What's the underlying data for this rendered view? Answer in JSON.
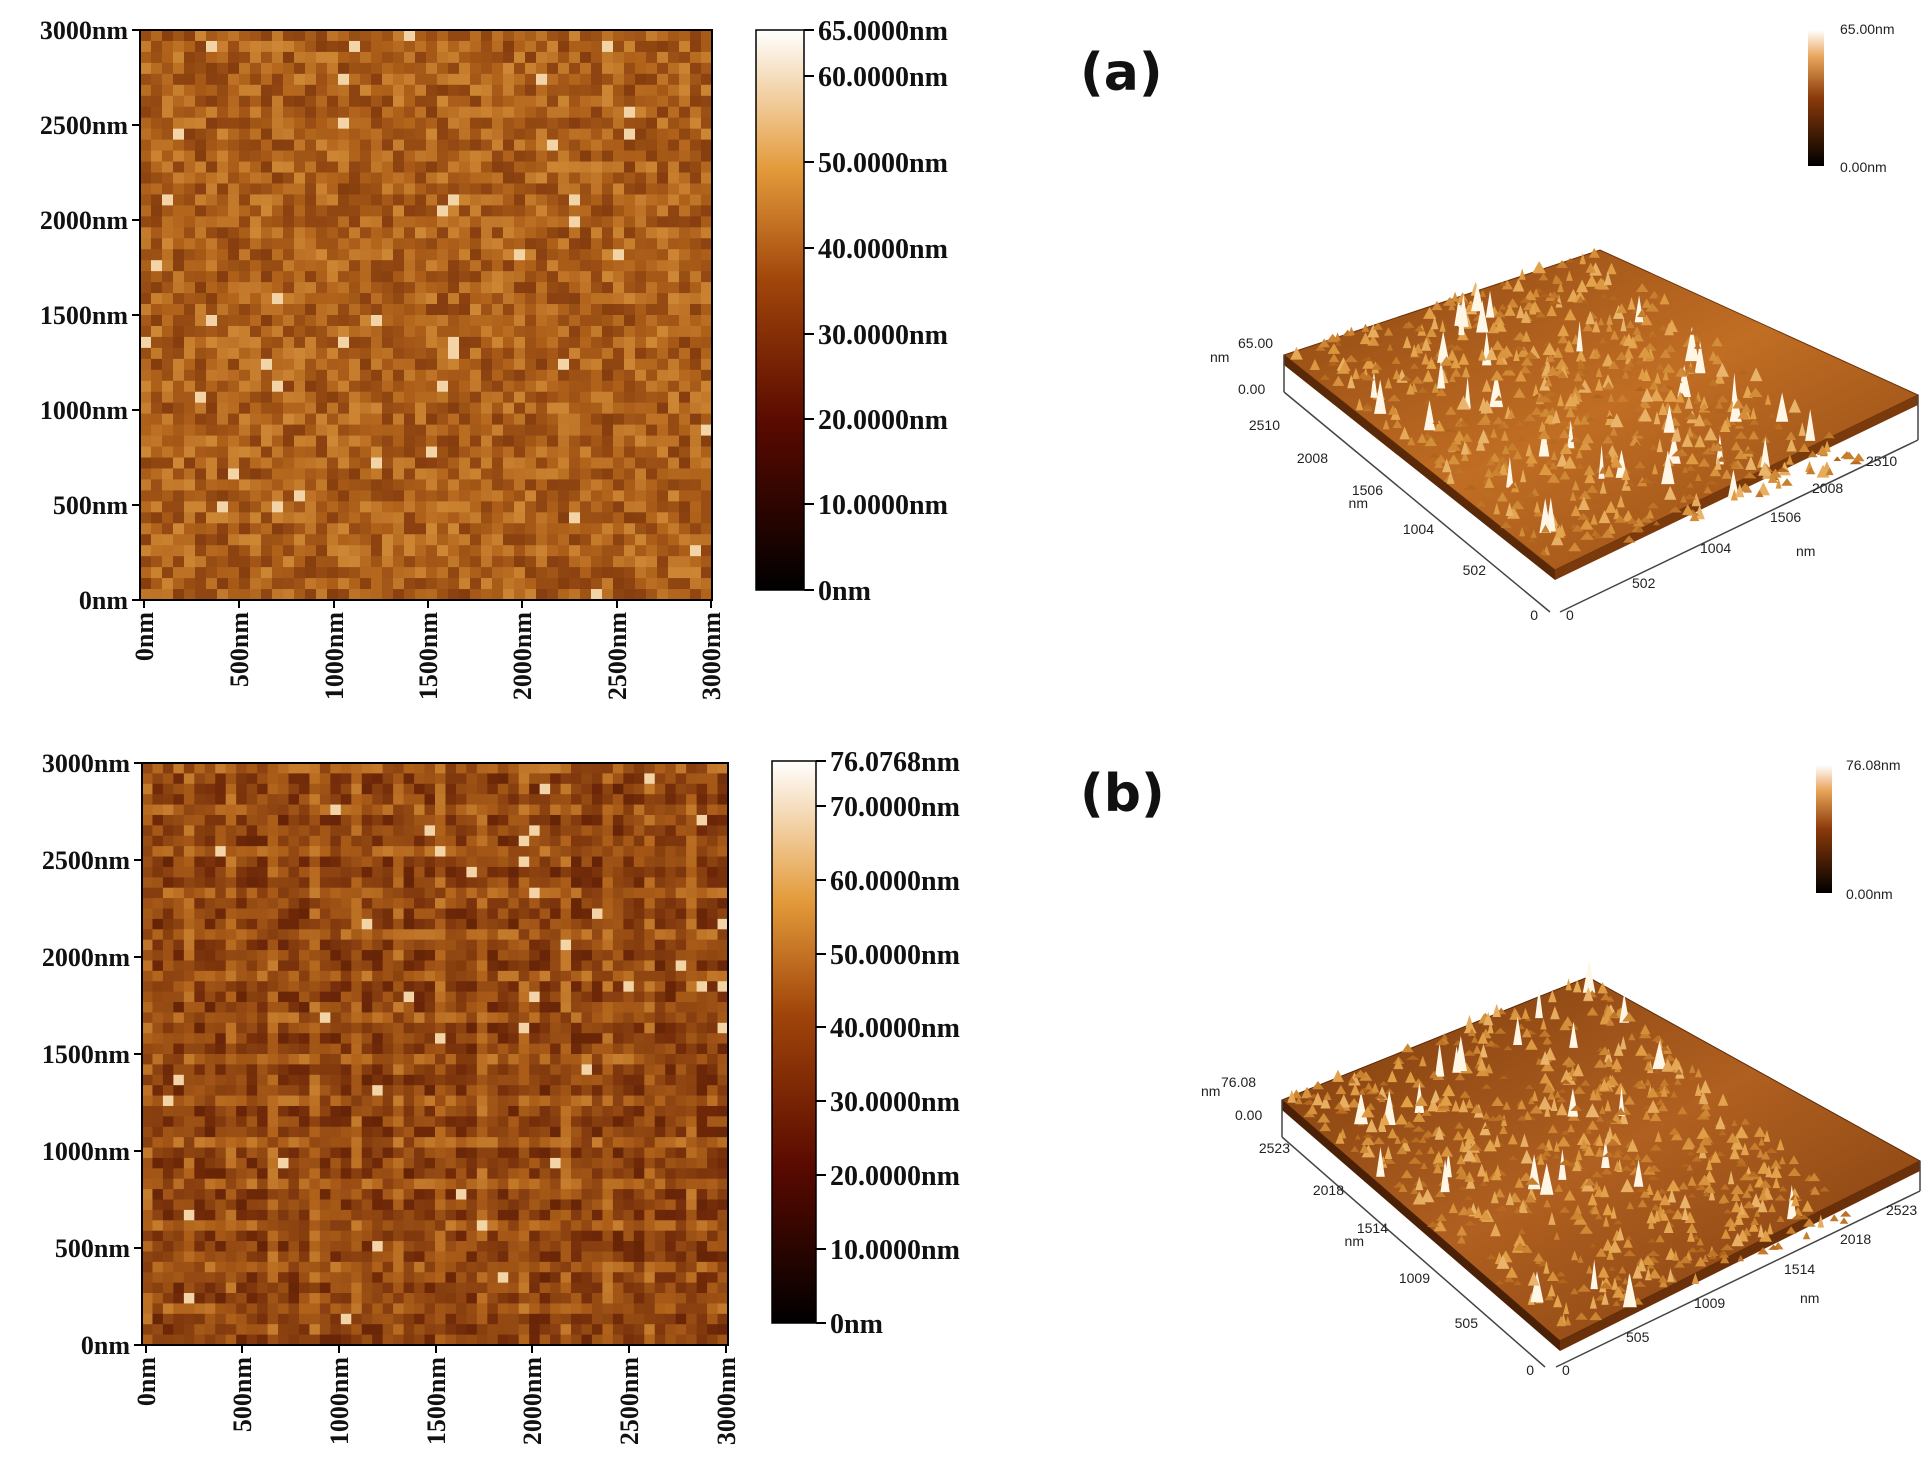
{
  "panels": [
    {
      "label": "(a)",
      "map2d": {
        "y_ticks": [
          "0nm",
          "500nm",
          "1000nm",
          "1500nm",
          "2000nm",
          "2500nm",
          "3000nm"
        ],
        "x_ticks": [
          "0nm",
          "500nm",
          "1000nm",
          "1500nm",
          "2000nm",
          "2500nm",
          "3000nm"
        ],
        "colorbar_ticks": [
          "0nm",
          "10.0000nm",
          "20.0000nm",
          "30.0000nm",
          "40.0000nm",
          "50.0000nm",
          "60.0000nm",
          "65.0000nm"
        ],
        "colorbar_max": 65
      },
      "view3d": {
        "colorbar_max_label": "65.00nm",
        "colorbar_min_label": "0.00nm",
        "z_max_label": "65.00",
        "z_min_label": "0.00",
        "z_unit": "nm",
        "left_axis_ticks": [
          "0",
          "502",
          "1004",
          "1506",
          "2008",
          "2510"
        ],
        "left_axis_unit": "nm",
        "right_axis_ticks": [
          "0",
          "502",
          "1004",
          "1506",
          "2008",
          "2510"
        ],
        "right_axis_unit": "nm"
      }
    },
    {
      "label": "(b)",
      "map2d": {
        "y_ticks": [
          "0nm",
          "500nm",
          "1000nm",
          "1500nm",
          "2000nm",
          "2500nm",
          "3000nm"
        ],
        "x_ticks": [
          "0nm",
          "500nm",
          "1000nm",
          "1500nm",
          "2000nm",
          "2500nm",
          "3000nm"
        ],
        "colorbar_ticks": [
          "0nm",
          "10.0000nm",
          "20.0000nm",
          "30.0000nm",
          "40.0000nm",
          "50.0000nm",
          "60.0000nm",
          "70.0000nm",
          "76.0768nm"
        ],
        "colorbar_max": 76.0768
      },
      "view3d": {
        "colorbar_max_label": "76.08nm",
        "colorbar_min_label": "0.00nm",
        "z_max_label": "76.08",
        "z_min_label": "0.00",
        "z_unit": "nm",
        "left_axis_ticks": [
          "0",
          "505",
          "1009",
          "1514",
          "2018",
          "2523"
        ],
        "left_axis_unit": "nm",
        "right_axis_ticks": [
          "0",
          "505",
          "1009",
          "1514",
          "2018",
          "2523"
        ],
        "right_axis_unit": "nm"
      }
    }
  ],
  "colors": {
    "afm_dark": "#1a0500",
    "afm_mid": "#a0520c",
    "afm_light": "#fff8ec"
  }
}
